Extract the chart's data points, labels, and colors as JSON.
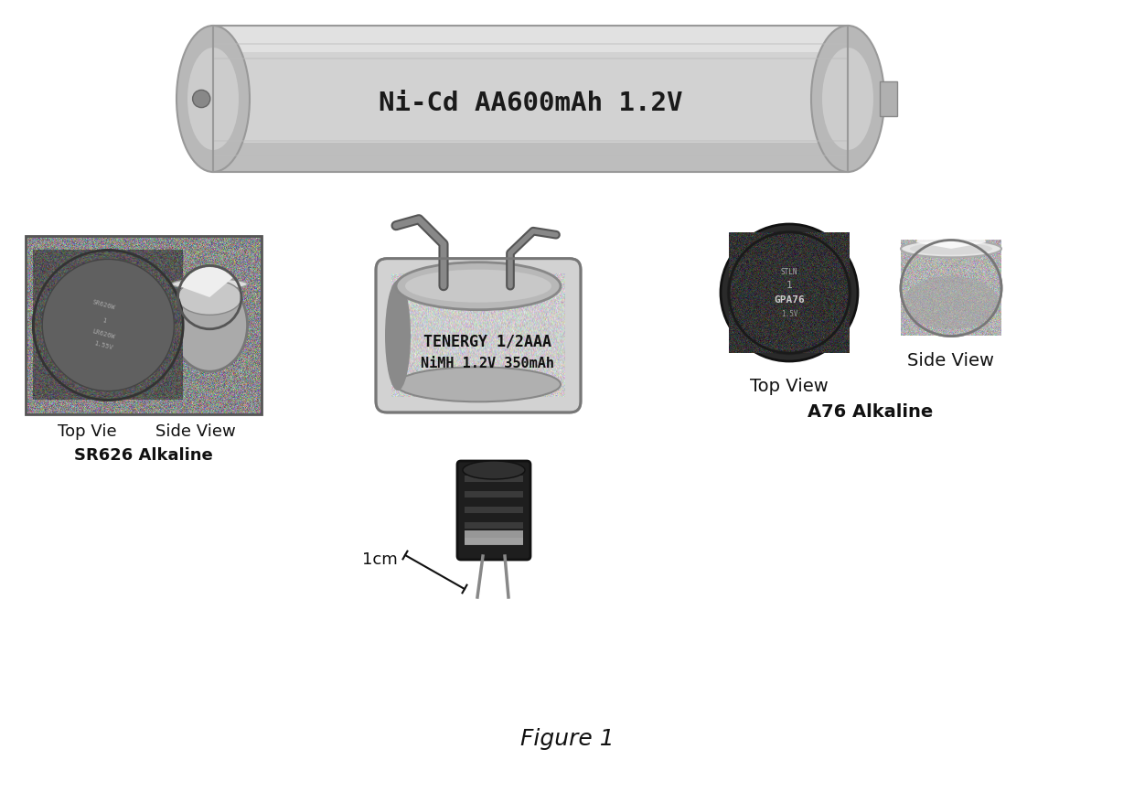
{
  "background_color": "#ffffff",
  "figure_title": "Figure 1",
  "figure_title_fontsize": 18,
  "labels": {
    "sr626_top": "Top Vie",
    "sr626_side": "Side View",
    "sr626_name": "SR626 Alkaline",
    "a76_top": "Top View",
    "a76_side": "Side View",
    "a76_name": "A76 Alkaline",
    "scale": "1cm",
    "battery1_text": "Ni-Cd AA600mAh 1.2V",
    "battery2_line1": "TENERGY 1/2AAA",
    "battery2_line2": "NiMH 1.2V 350mAh"
  },
  "colors": {
    "white": "#ffffff",
    "page_bg": "#f0f0f0",
    "battery_body": "#d2d2d2",
    "battery_cap": "#b8b8b8",
    "battery_dark": "#888888",
    "battery_text": "#1a1a1a",
    "coin_dark": "#4a4a4a",
    "coin_mid": "#6a6a6a",
    "coin_light": "#aaaaaa",
    "silver_body": "#c0c0c0",
    "silver_light": "#e0e0e0",
    "photo_bg": "#999999",
    "cap_dark": "#222222",
    "cap_stripe": "#444444",
    "black": "#111111",
    "gray_line": "#777777"
  }
}
